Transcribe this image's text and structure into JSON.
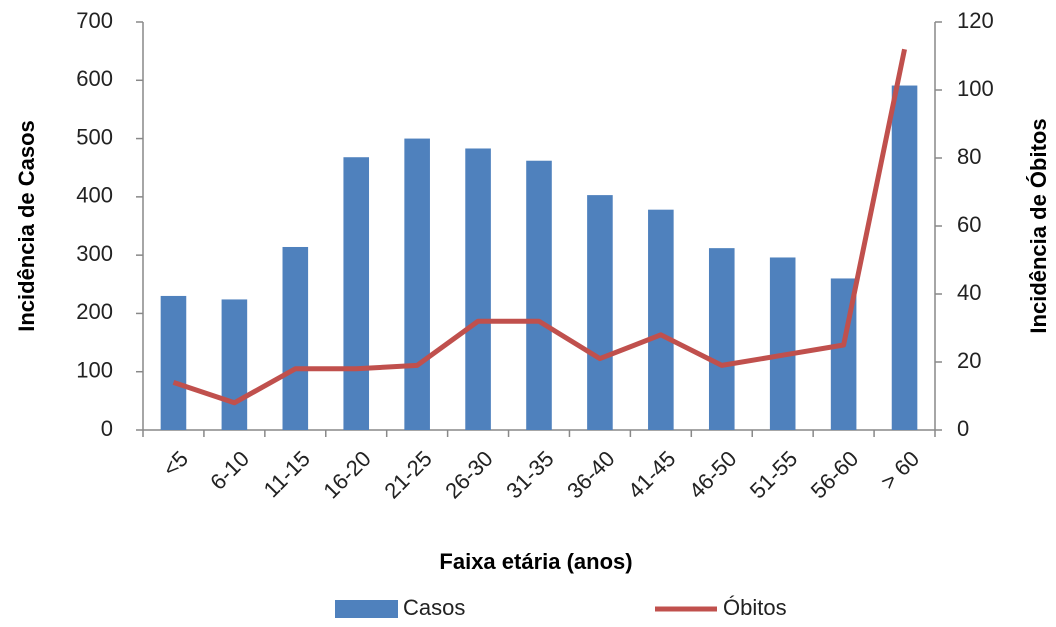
{
  "chart_data": {
    "type": "bar-line",
    "x_label": "Faixa etária (anos)",
    "y_label": "Incidência de Casos",
    "y2_label": "Incidência de Óbitos",
    "categories": [
      "<5",
      "6-10",
      "11-15",
      "16-20",
      "21-25",
      "26-30",
      "31-35",
      "36-40",
      "41-45",
      "46-50",
      "51-55",
      "56-60",
      "> 60"
    ],
    "series": [
      {
        "name": "Casos",
        "type": "bar",
        "color": "#4f81bd",
        "values": [
          230,
          224,
          314,
          468,
          500,
          483,
          462,
          403,
          378,
          312,
          296,
          260,
          591
        ]
      },
      {
        "name": "Óbitos",
        "type": "line",
        "axis": "y2",
        "color": "#c0504d",
        "values": [
          14,
          8,
          18,
          18,
          19,
          32,
          32,
          21,
          28,
          19,
          22,
          25,
          112
        ]
      }
    ],
    "ylim": [
      0,
      700
    ],
    "yticks": [
      0,
      100,
      200,
      300,
      400,
      500,
      600,
      700
    ],
    "y2lim": [
      0,
      120
    ],
    "y2ticks": [
      0,
      20,
      40,
      60,
      80,
      100,
      120
    ],
    "legend": "bottom",
    "grid": false
  }
}
